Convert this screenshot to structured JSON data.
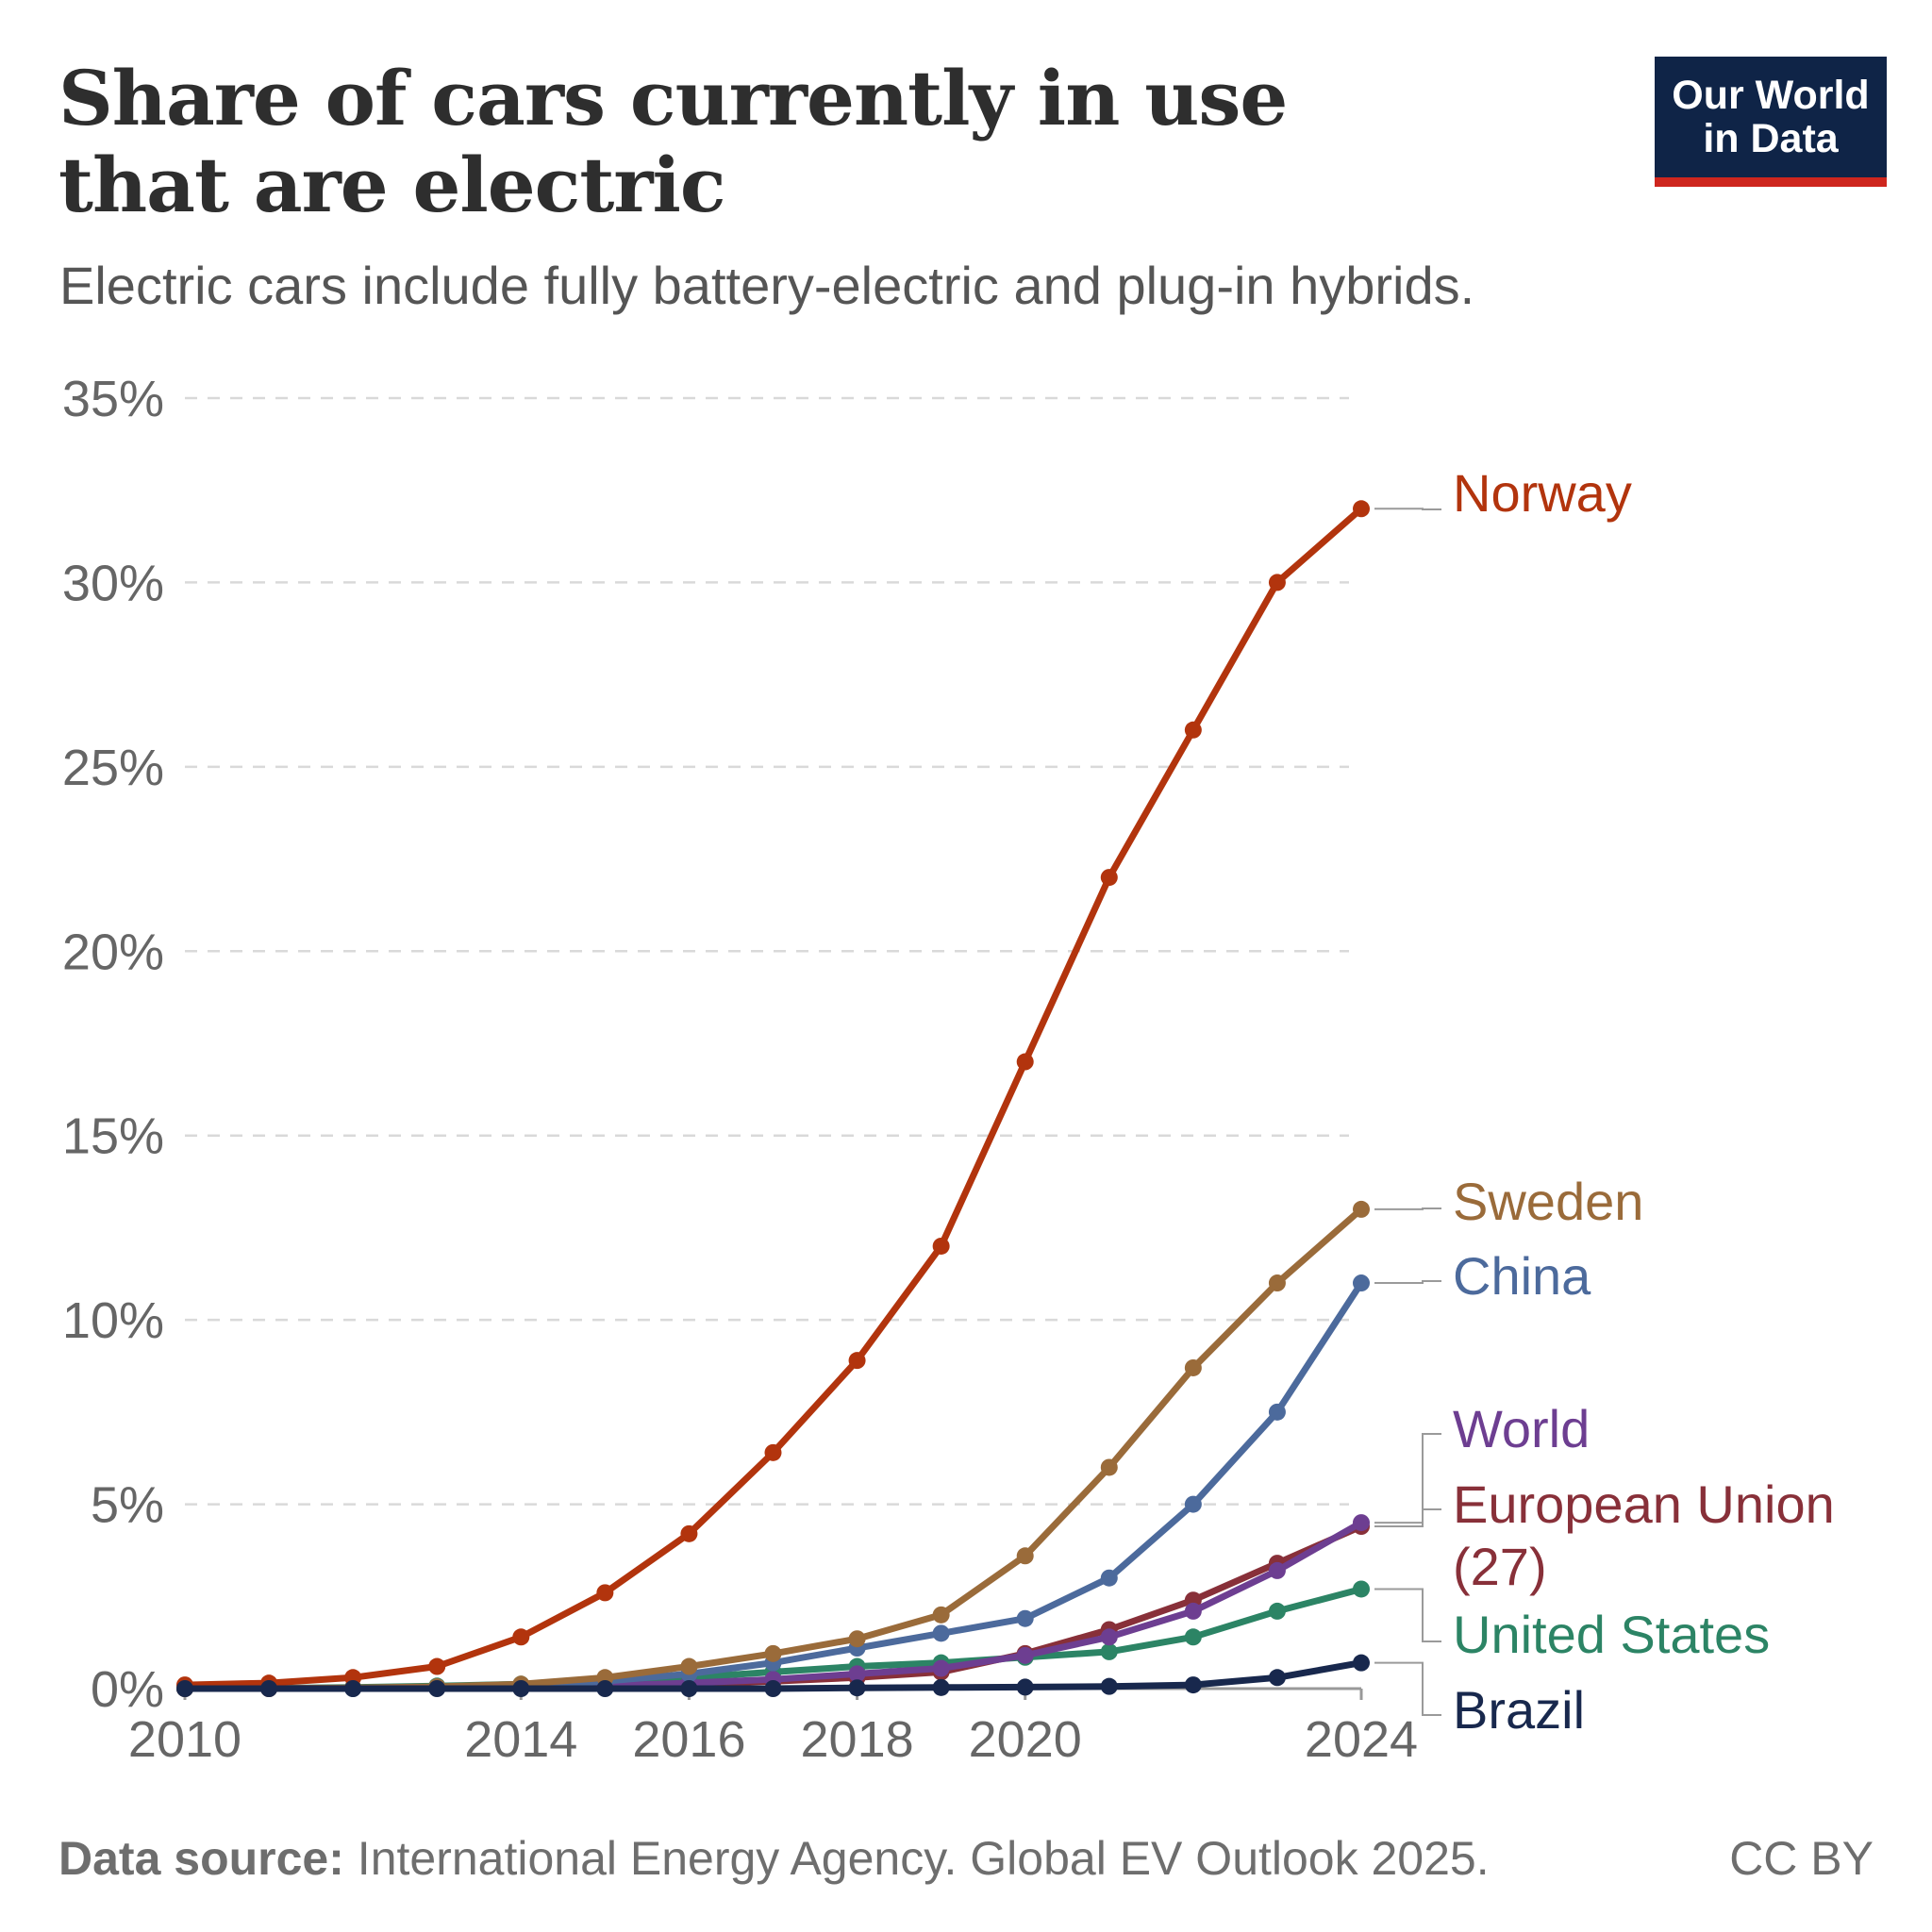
{
  "header": {
    "title": "Share of cars currently in use that are electric",
    "subtitle": "Electric cars include fully battery-electric and plug-in hybrids.",
    "logo_line1": "Our World",
    "logo_line2": "in Data"
  },
  "footer": {
    "source_label": "Data source:",
    "source_text": "International Energy Agency. Global EV Outlook 2025.",
    "license": "CC BY"
  },
  "colors": {
    "grid": "#d9d9d9",
    "axis_text": "#666666",
    "logo_bg": "#0f2447",
    "logo_accent": "#ce261e"
  },
  "chart_data": {
    "type": "line",
    "title": "Share of cars currently in use that are electric",
    "xlabel": "",
    "ylabel": "",
    "ylim": [
      0,
      35
    ],
    "xlim": [
      2010,
      2024
    ],
    "grid": true,
    "y_ticks": [
      0,
      5,
      10,
      15,
      20,
      25,
      30,
      35
    ],
    "y_tick_labels": [
      "0%",
      "5%",
      "10%",
      "15%",
      "20%",
      "25%",
      "30%",
      "35%"
    ],
    "x_ticks": [
      2010,
      2014,
      2016,
      2018,
      2020,
      2024
    ],
    "x_tick_labels": [
      "2010",
      "2014",
      "2016",
      "2018",
      "2020",
      "2024"
    ],
    "x": [
      2010,
      2011,
      2012,
      2013,
      2014,
      2015,
      2016,
      2017,
      2018,
      2019,
      2020,
      2021,
      2022,
      2023,
      2024
    ],
    "series": [
      {
        "name": "Norway",
        "label": "Norway",
        "color": "#b2340d",
        "values": [
          0.1,
          0.15,
          0.3,
          0.6,
          1.4,
          2.6,
          4.2,
          6.4,
          8.9,
          12.0,
          17.0,
          22.0,
          26.0,
          30.0,
          32.0
        ]
      },
      {
        "name": "Sweden",
        "label": "Sweden",
        "color": "#9a6b3a",
        "values": [
          0.0,
          0.0,
          0.02,
          0.05,
          0.12,
          0.3,
          0.6,
          0.95,
          1.35,
          2.0,
          3.6,
          6.0,
          8.7,
          11.0,
          13.0
        ]
      },
      {
        "name": "China",
        "label": "China",
        "color": "#4c6a9c",
        "values": [
          0.0,
          0.0,
          0.0,
          0.02,
          0.05,
          0.2,
          0.4,
          0.7,
          1.1,
          1.5,
          1.9,
          3.0,
          5.0,
          7.5,
          11.0
        ]
      },
      {
        "name": "World",
        "label": "World",
        "color": "#6d3e91",
        "values": [
          0.0,
          0.0,
          0.01,
          0.02,
          0.04,
          0.08,
          0.15,
          0.25,
          0.4,
          0.55,
          0.9,
          1.4,
          2.1,
          3.2,
          4.5
        ]
      },
      {
        "name": "European Union (27)",
        "label": "European Union",
        "label2": "(27)",
        "color": "#883039",
        "values": [
          0.0,
          0.0,
          0.01,
          0.02,
          0.04,
          0.08,
          0.13,
          0.2,
          0.3,
          0.45,
          0.95,
          1.6,
          2.4,
          3.4,
          4.4
        ]
      },
      {
        "name": "United States",
        "label": "United States",
        "color": "#2c8465",
        "values": [
          0.0,
          0.01,
          0.03,
          0.07,
          0.12,
          0.2,
          0.3,
          0.45,
          0.6,
          0.7,
          0.85,
          1.0,
          1.4,
          2.1,
          2.7
        ]
      },
      {
        "name": "Brazil",
        "label": "Brazil",
        "color": "#18284d",
        "values": [
          0.0,
          0.0,
          0.0,
          0.0,
          0.0,
          0.0,
          0.0,
          0.0,
          0.02,
          0.03,
          0.04,
          0.06,
          0.1,
          0.3,
          0.7
        ]
      }
    ]
  }
}
